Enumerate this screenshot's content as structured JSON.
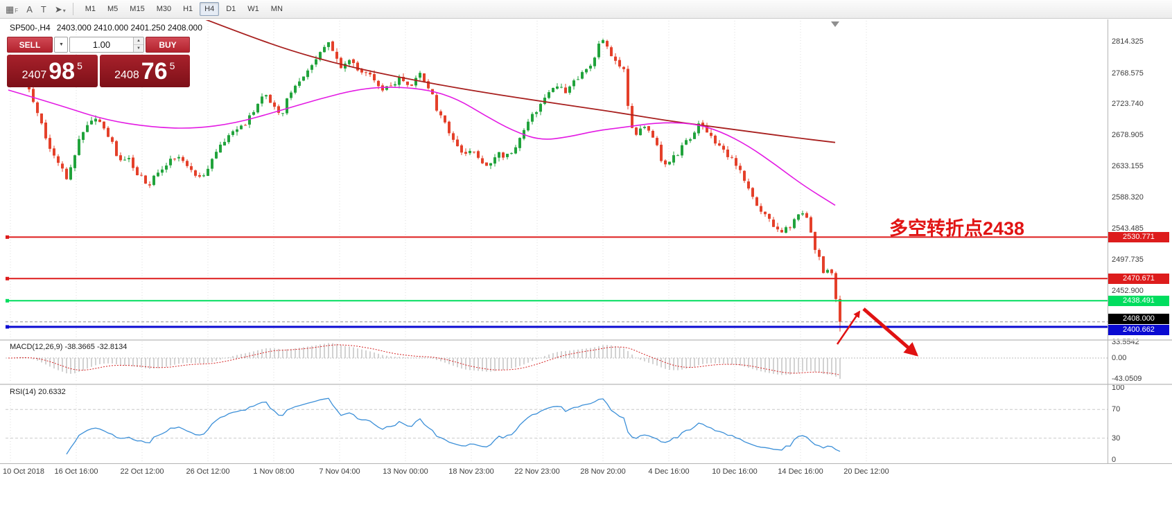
{
  "toolbar": {
    "icons": [
      {
        "name": "grid-f-icon",
        "glyph": "▦",
        "badge": "F"
      },
      {
        "name": "font-icon",
        "glyph": "A",
        "badge": ""
      },
      {
        "name": "text-label-icon",
        "glyph": "T",
        "badge": ""
      },
      {
        "name": "cursor-arrow-icon",
        "glyph": "➤",
        "badge": "▾"
      }
    ],
    "timeframes": [
      "M1",
      "M5",
      "M15",
      "M30",
      "H1",
      "H4",
      "D1",
      "W1",
      "MN"
    ],
    "active_timeframe": "H4"
  },
  "chart_header": {
    "symbol": "SP500-,H4",
    "ohlc": "2403.000 2410.000 2401.250 2408.000"
  },
  "trade_panel": {
    "sell_label": "SELL",
    "buy_label": "BUY",
    "volume": "1.00",
    "dropdown_glyph": "▼",
    "spin_up": "▲",
    "spin_down": "▼",
    "sell_price": {
      "main": "2407",
      "big": "98",
      "sup": "5"
    },
    "buy_price": {
      "main": "2408",
      "big": "76",
      "sup": "5"
    }
  },
  "price_axis": [
    "2814.325",
    "2768.575",
    "2723.740",
    "2678.905",
    "2633.155",
    "2588.320",
    "2543.485",
    "2497.735",
    "2452.900"
  ],
  "hlines": [
    {
      "label": "2530.771",
      "price": 2530.771,
      "color": "#dd1c1c",
      "width": 2
    },
    {
      "label": "2470.671",
      "price": 2470.671,
      "color": "#dd1c1c",
      "width": 2
    },
    {
      "label": "2438.491",
      "price": 2438.491,
      "color": "#00dd5e",
      "width": 2
    },
    {
      "label": "2400.662",
      "price": 2400.662,
      "color": "#0a0ad2",
      "width": 3
    }
  ],
  "current_price_tag": {
    "label": "2408.000",
    "price": 2408.0,
    "color": "#000000"
  },
  "annotation": {
    "text": "多空转折点2438",
    "color": "#e11414"
  },
  "macd_panel": {
    "label": "MACD(12,26,9) -38.3665 -32.8134",
    "axis": [
      "33.5542",
      "0.00",
      "-43.0509"
    ]
  },
  "rsi_panel": {
    "label": "RSI(14) 20.6332",
    "axis": [
      "100",
      "70",
      "30",
      "0"
    ],
    "levels": [
      70,
      30
    ]
  },
  "date_axis": [
    "10 Oct 2018",
    "16 Oct 16:00",
    "22 Oct 12:00",
    "26 Oct 12:00",
    "1 Nov 08:00",
    "7 Nov 04:00",
    "13 Nov 00:00",
    "18 Nov 23:00",
    "22 Nov 23:00",
    "28 Nov 20:00",
    "4 Dec 16:00",
    "10 Dec 16:00",
    "14 Dec 16:00",
    "20 Dec 12:00"
  ],
  "chart_data": {
    "type": "candlestick",
    "symbol": "SP500-",
    "timeframe": "H4",
    "y_axis_range": [
      2383,
      2846
    ],
    "colors": {
      "up": "#21a33c",
      "down": "#e4402a",
      "ma_fast": "#e31ae3",
      "ma_slow": "#a8201f",
      "macd_hist": "#bfbfbf",
      "macd_signal": "#d42020",
      "rsi": "#3b8fd8",
      "arrow": "#e01212"
    },
    "price_keyframes": [
      [
        12,
        2758
      ],
      [
        28,
        2772
      ],
      [
        42,
        2745
      ],
      [
        58,
        2698
      ],
      [
        72,
        2662
      ],
      [
        88,
        2636
      ],
      [
        98,
        2615
      ],
      [
        112,
        2668
      ],
      [
        126,
        2696
      ],
      [
        140,
        2706
      ],
      [
        156,
        2678
      ],
      [
        170,
        2648
      ],
      [
        186,
        2642
      ],
      [
        200,
        2622
      ],
      [
        214,
        2604
      ],
      [
        230,
        2628
      ],
      [
        246,
        2642
      ],
      [
        262,
        2646
      ],
      [
        276,
        2624
      ],
      [
        290,
        2613
      ],
      [
        306,
        2641
      ],
      [
        322,
        2669
      ],
      [
        336,
        2684
      ],
      [
        352,
        2693
      ],
      [
        366,
        2716
      ],
      [
        382,
        2742
      ],
      [
        394,
        2724
      ],
      [
        406,
        2707
      ],
      [
        420,
        2744
      ],
      [
        436,
        2766
      ],
      [
        450,
        2781
      ],
      [
        462,
        2800
      ],
      [
        472,
        2813
      ],
      [
        482,
        2794
      ],
      [
        494,
        2777
      ],
      [
        506,
        2786
      ],
      [
        518,
        2768
      ],
      [
        530,
        2773
      ],
      [
        542,
        2757
      ],
      [
        556,
        2744
      ],
      [
        568,
        2753
      ],
      [
        580,
        2763
      ],
      [
        592,
        2747
      ],
      [
        606,
        2767
      ],
      [
        618,
        2751
      ],
      [
        630,
        2718
      ],
      [
        644,
        2694
      ],
      [
        656,
        2667
      ],
      [
        668,
        2647
      ],
      [
        682,
        2656
      ],
      [
        694,
        2639
      ],
      [
        706,
        2637
      ],
      [
        718,
        2656
      ],
      [
        730,
        2647
      ],
      [
        744,
        2663
      ],
      [
        756,
        2686
      ],
      [
        768,
        2706
      ],
      [
        780,
        2723
      ],
      [
        794,
        2749
      ],
      [
        806,
        2753
      ],
      [
        816,
        2737
      ],
      [
        830,
        2759
      ],
      [
        842,
        2769
      ],
      [
        854,
        2779
      ],
      [
        864,
        2809
      ],
      [
        872,
        2816
      ],
      [
        882,
        2791
      ],
      [
        892,
        2781
      ],
      [
        900,
        2774
      ],
      [
        908,
        2698
      ],
      [
        918,
        2681
      ],
      [
        928,
        2693
      ],
      [
        938,
        2684
      ],
      [
        948,
        2661
      ],
      [
        958,
        2633
      ],
      [
        968,
        2647
      ],
      [
        978,
        2653
      ],
      [
        988,
        2666
      ],
      [
        998,
        2673
      ],
      [
        1008,
        2693
      ],
      [
        1018,
        2684
      ],
      [
        1028,
        2671
      ],
      [
        1038,
        2661
      ],
      [
        1048,
        2651
      ],
      [
        1058,
        2641
      ],
      [
        1068,
        2627
      ],
      [
        1078,
        2604
      ],
      [
        1088,
        2586
      ],
      [
        1098,
        2571
      ],
      [
        1108,
        2556
      ],
      [
        1118,
        2547
      ],
      [
        1128,
        2537
      ],
      [
        1138,
        2546
      ],
      [
        1148,
        2556
      ],
      [
        1158,
        2566
      ],
      [
        1168,
        2551
      ],
      [
        1176,
        2513
      ],
      [
        1184,
        2493
      ],
      [
        1190,
        2477
      ],
      [
        1196,
        2491
      ],
      [
        1202,
        2466
      ],
      [
        1207,
        2436
      ],
      [
        1212,
        2408
      ]
    ],
    "ma_fast_keyframes": [
      [
        12,
        2744
      ],
      [
        80,
        2724
      ],
      [
        150,
        2701
      ],
      [
        220,
        2690
      ],
      [
        280,
        2688
      ],
      [
        340,
        2696
      ],
      [
        400,
        2713
      ],
      [
        460,
        2731
      ],
      [
        520,
        2746
      ],
      [
        570,
        2749
      ],
      [
        620,
        2744
      ],
      [
        660,
        2731
      ],
      [
        700,
        2707
      ],
      [
        740,
        2685
      ],
      [
        780,
        2671
      ],
      [
        820,
        2676
      ],
      [
        860,
        2685
      ],
      [
        900,
        2690
      ],
      [
        950,
        2697
      ],
      [
        1000,
        2696
      ],
      [
        1040,
        2684
      ],
      [
        1080,
        2663
      ],
      [
        1120,
        2635
      ],
      [
        1160,
        2605
      ],
      [
        1205,
        2577
      ]
    ],
    "ma_slow_keyframes": [
      [
        295,
        2847
      ],
      [
        360,
        2822
      ],
      [
        420,
        2801
      ],
      [
        480,
        2784
      ],
      [
        540,
        2770
      ],
      [
        600,
        2758
      ],
      [
        660,
        2747
      ],
      [
        720,
        2737
      ],
      [
        780,
        2728
      ],
      [
        840,
        2719
      ],
      [
        900,
        2710
      ],
      [
        960,
        2700
      ],
      [
        1020,
        2692
      ],
      [
        1080,
        2684
      ],
      [
        1140,
        2676
      ],
      [
        1205,
        2668
      ]
    ],
    "indicators": [
      {
        "name": "MACD",
        "params": [
          12,
          26,
          9
        ],
        "values": [
          -38.3665,
          -32.8134
        ]
      },
      {
        "name": "RSI",
        "params": [
          14
        ],
        "value": 20.6332
      }
    ]
  }
}
